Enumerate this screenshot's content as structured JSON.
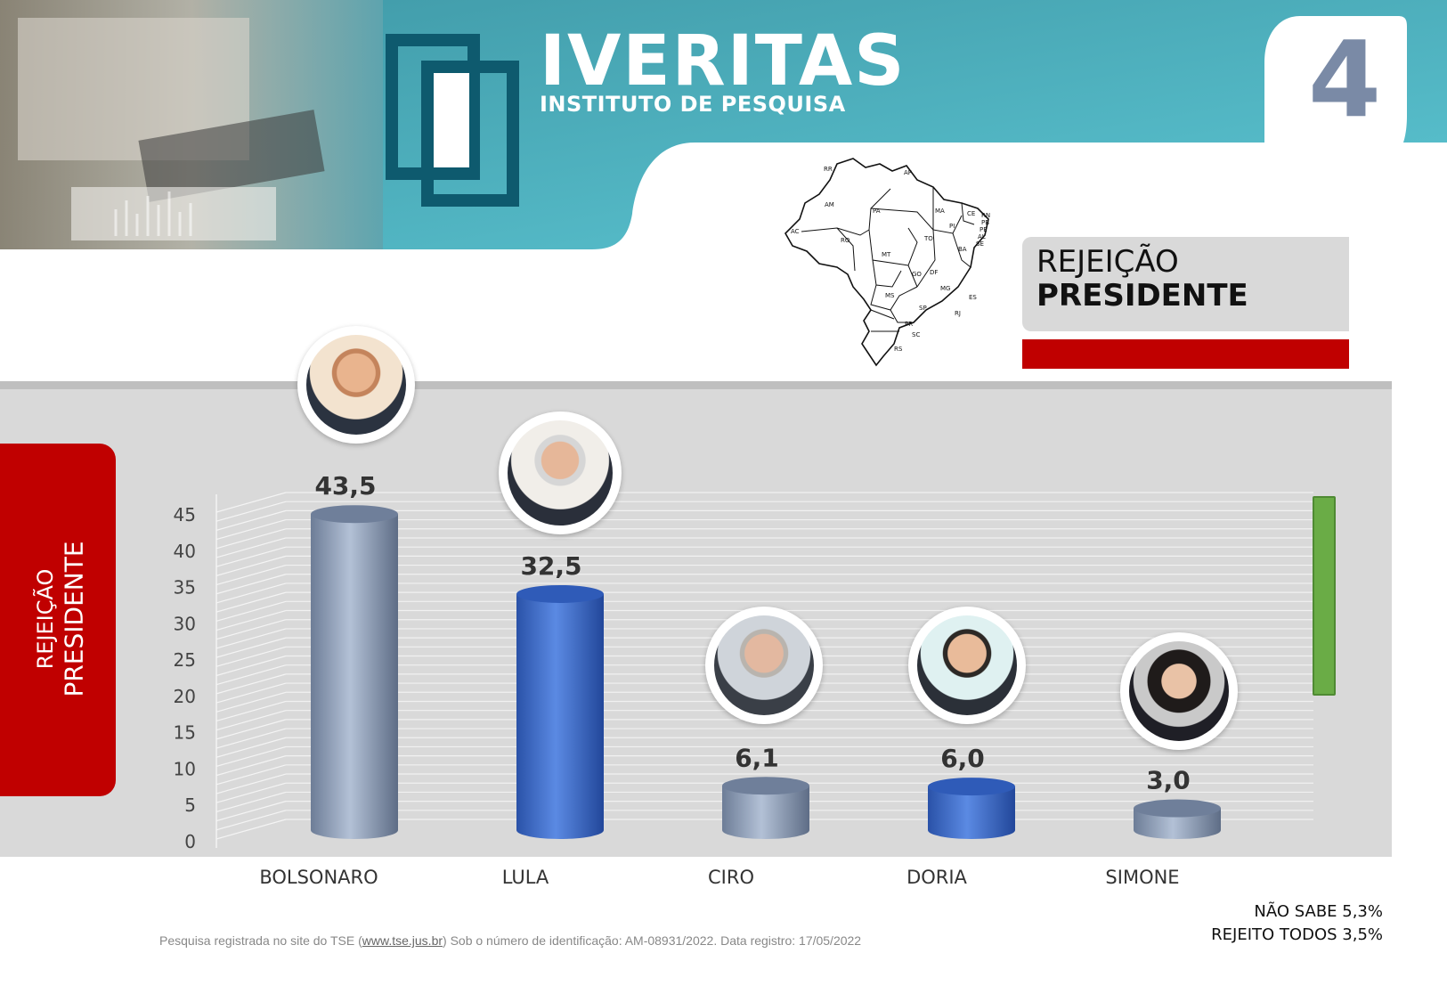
{
  "header": {
    "logo_title": "IVERITAS",
    "logo_subtitle": "INSTITUTO DE PESQUISA",
    "page_number": "4"
  },
  "title": {
    "line1": "REJEIÇÃO",
    "line2": "PRESIDENTE"
  },
  "side_label": {
    "line1": "REJEIÇÃO",
    "line2": "PRESIDENTE"
  },
  "map_states": [
    "RR",
    "AP",
    "AM",
    "PA",
    "MA",
    "CE",
    "RN",
    "PB",
    "PE",
    "PI",
    "AL",
    "SE",
    "AC",
    "RO",
    "TO",
    "BA",
    "MT",
    "GO",
    "DF",
    "MG",
    "ES",
    "MS",
    "SP",
    "RJ",
    "PR",
    "SC",
    "RS"
  ],
  "chart_data": {
    "type": "bar",
    "categories": [
      "BOLSONARO",
      "LULA",
      "CIRO",
      "DORIA",
      "SIMONE"
    ],
    "values": [
      43.5,
      32.5,
      6.1,
      6.0,
      3.0
    ],
    "value_labels": [
      "43,5",
      "32,5",
      "6,1",
      "6,0",
      "3,0"
    ],
    "bar_colors": [
      "#8a9bb5",
      "#3e6bc7",
      "#8a9bb5",
      "#3e6bc7",
      "#8a9bb5"
    ],
    "y_ticks": [
      "0",
      "5",
      "10",
      "15",
      "20",
      "25",
      "30",
      "35",
      "40",
      "45"
    ],
    "ylim": [
      0,
      45
    ],
    "grid": true,
    "title": "",
    "xlabel": "",
    "ylabel": ""
  },
  "extras": {
    "nao_sabe": "NÃO SABE 5,3%",
    "rejeito_todos": "REJEITO TODOS 3,5%"
  },
  "footnote": {
    "before": "Pesquisa registrada no site do TSE (",
    "link": "www.tse.jus.br",
    "after": ") Sob o número de identificação: AM-08931/2022. Data registro: 17/05/2022"
  },
  "colors": {
    "teal": "#4fa7b3",
    "dark_teal": "#0e5a6e",
    "red": "#c00000",
    "green": "#6aac46",
    "grey_bar": "#8a9bb5",
    "blue_bar": "#3e6bc7"
  }
}
